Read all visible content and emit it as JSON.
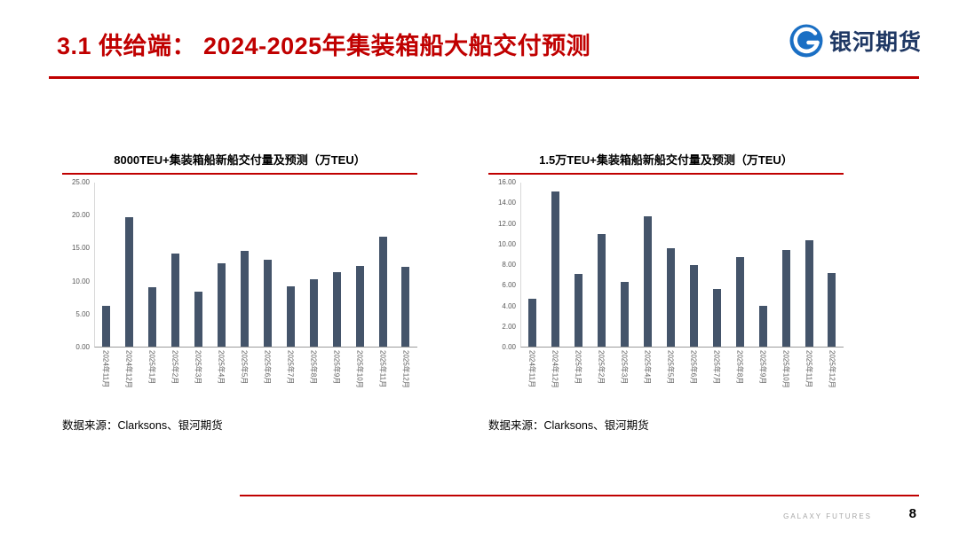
{
  "header": {
    "title": "3.1 供给端： 2024-2025年集装箱船大船交付预测"
  },
  "logo": {
    "name": "银河期货",
    "icon": "galaxy-sphere-icon"
  },
  "footer": {
    "brand": "GALAXY FUTURES",
    "page_number": "8"
  },
  "colors": {
    "accent_red": "#c00000",
    "bar": "#44546a",
    "logo_blue": "#1a6fc4",
    "axis_text": "#595959"
  },
  "chart_data": [
    {
      "type": "bar",
      "title": "8000TEU+集装箱船新船交付量及预测（万TEU）",
      "categories": [
        "2024年11月",
        "2024年12月",
        "2025年1月",
        "2025年2月",
        "2025年3月",
        "2025年4月",
        "2025年5月",
        "2025年6月",
        "2025年7月",
        "2025年8月",
        "2025年9月",
        "2025年10月",
        "2025年11月",
        "2025年12月"
      ],
      "values": [
        6.2,
        19.7,
        9.0,
        14.2,
        8.4,
        12.7,
        14.6,
        13.2,
        9.2,
        10.3,
        11.4,
        12.3,
        16.7,
        12.1
      ],
      "ylim": [
        0,
        25
      ],
      "ytick_step": 5,
      "ytick_labels": [
        "0.00",
        "5.00",
        "10.00",
        "15.00",
        "20.00",
        "25.00"
      ],
      "xlabel": "",
      "ylabel": "",
      "grid": false,
      "legend": "none",
      "bar_color": "#44546a",
      "source": "数据来源：Clarksons、银河期货"
    },
    {
      "type": "bar",
      "title": "1.5万TEU+集装箱船新船交付量及预测（万TEU）",
      "categories": [
        "2024年11月",
        "2024年12月",
        "2025年1月",
        "2025年2月",
        "2025年3月",
        "2025年4月",
        "2025年5月",
        "2025年6月",
        "2025年7月",
        "2025年8月",
        "2025年9月",
        "2025年10月",
        "2025年11月",
        "2025年12月"
      ],
      "values": [
        4.7,
        15.1,
        7.1,
        11.0,
        6.3,
        12.7,
        9.6,
        8.0,
        5.6,
        8.7,
        4.0,
        9.4,
        10.4,
        7.2
      ],
      "ylim": [
        0,
        16
      ],
      "ytick_step": 2,
      "ytick_labels": [
        "0.00",
        "2.00",
        "4.00",
        "6.00",
        "8.00",
        "10.00",
        "12.00",
        "14.00",
        "16.00"
      ],
      "xlabel": "",
      "ylabel": "",
      "grid": false,
      "legend": "none",
      "bar_color": "#44546a",
      "source": "数据来源：Clarksons、银河期货"
    }
  ]
}
